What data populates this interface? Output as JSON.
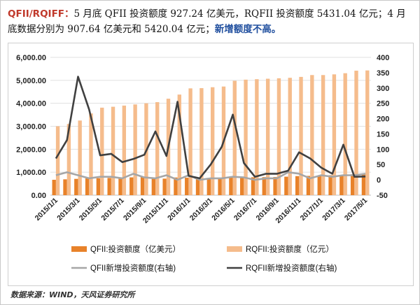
{
  "header": {
    "tag": "QFII/RQIFF：",
    "text": "5 月底 QFII 投资额度 927.24 亿美元，RQFII 投资额度 5431.04 亿元；4 月底数据分别为 907.64 亿美元和 5420.04 亿元；",
    "highlight": "新增额度不高。"
  },
  "source": "数据来源：WIND，天风证券研究所",
  "chart_data": {
    "type": "bar+line",
    "title": "",
    "xlabel": "",
    "ylabel": "",
    "ylim_left": [
      0,
      6000
    ],
    "yticks_left": [
      "0.00",
      "1,000.00",
      "2,000.00",
      "3,000.00",
      "4,000.00",
      "5,000.00",
      "6,000.00"
    ],
    "ylim_right": [
      -50,
      400
    ],
    "yticks_right": [
      "-50",
      "0",
      "50",
      "100",
      "150",
      "200",
      "250",
      "300",
      "350",
      "400"
    ],
    "x_tick_labels": [
      "2015/1/1",
      "2015/3/1",
      "2015/5/1",
      "2015/7/1",
      "2015/9/1",
      "2015/11/1",
      "2016/1/1",
      "2016/3/1",
      "2016/5/1",
      "2016/7/1",
      "2016/9/1",
      "2016/11/1",
      "2017/1/1",
      "2017/3/1",
      "2017/5/1"
    ],
    "x": [
      "2015/1",
      "2015/2",
      "2015/3",
      "2015/4",
      "2015/5",
      "2015/6",
      "2015/7",
      "2015/8",
      "2015/9",
      "2015/10",
      "2015/11",
      "2015/12",
      "2016/1",
      "2016/2",
      "2016/3",
      "2016/4",
      "2016/5",
      "2016/6",
      "2016/7",
      "2016/8",
      "2016/9",
      "2016/10",
      "2016/11",
      "2016/12",
      "2017/1",
      "2017/2",
      "2017/3",
      "2017/4",
      "2017/5"
    ],
    "legend_position": "bottom",
    "series": [
      {
        "name": "QFII:投资额度（亿美元）",
        "type": "bar",
        "axis": "left",
        "color": "#e8822a",
        "values": [
          670,
          690,
          710,
          730,
          740,
          750,
          760,
          775,
          790,
          745,
          720,
          770,
          760,
          745,
          748,
          755,
          770,
          779,
          779,
          785,
          790,
          805,
          830,
          840,
          858,
          867,
          880,
          907.64,
          927.24
        ]
      },
      {
        "name": "RQFII:投资额度（亿元）",
        "type": "bar",
        "axis": "left",
        "color": "#f5bc8c",
        "values": [
          3000,
          3100,
          3250,
          3560,
          3810,
          3850,
          3900,
          3950,
          4000,
          4050,
          4200,
          4380,
          4650,
          4660,
          4700,
          4730,
          4980,
          5030,
          5050,
          5070,
          5090,
          5110,
          5150,
          5230,
          5230,
          5260,
          5310,
          5420.04,
          5431.04
        ]
      },
      {
        "name": "QFII新增投资额度(右轴)",
        "type": "line",
        "axis": "right",
        "color": "#a6a6a6",
        "values": [
          15,
          25,
          15,
          5,
          10,
          10,
          5,
          20,
          8,
          5,
          15,
          0,
          15,
          0,
          5,
          5,
          10,
          8,
          0,
          5,
          5,
          25,
          20,
          5,
          15,
          10,
          15,
          15,
          20
        ]
      },
      {
        "name": "RQFII新增投资额度(右轴)",
        "type": "line",
        "axis": "right",
        "color": "#404040",
        "values": [
          70,
          130,
          337,
          230,
          80,
          85,
          58,
          68,
          82,
          158,
          78,
          255,
          13,
          5,
          50,
          108,
          213,
          55,
          10,
          20,
          20,
          30,
          90,
          70,
          40,
          20,
          115,
          10,
          11
        ]
      }
    ]
  }
}
